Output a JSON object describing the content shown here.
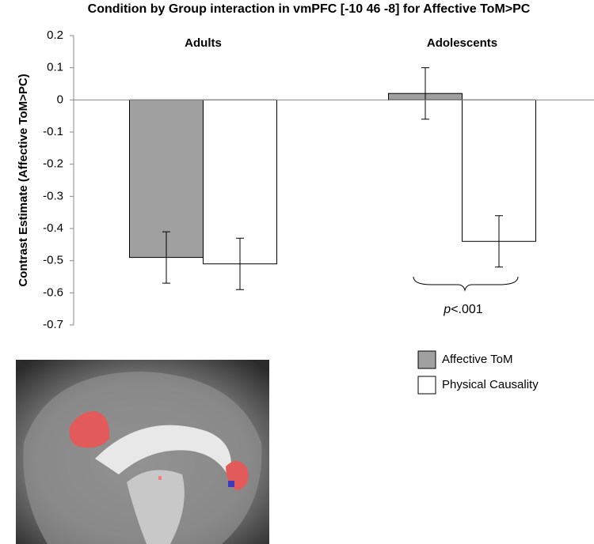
{
  "chart_data": {
    "type": "bar",
    "title": "Condition by Group interaction in vmPFC [-10 46 -8] for Affective ToM>PC",
    "y_label": "Contrast Estimate (Affective ToM>PC)",
    "categories": [
      "Adults",
      "Adolescents"
    ],
    "series": [
      {
        "name": "Affective ToM",
        "color": "#a0a0a0",
        "values": [
          -0.49,
          0.02
        ],
        "errors": [
          0.08,
          0.08
        ]
      },
      {
        "name": "Physical Causality",
        "color": "#ffffff",
        "values": [
          -0.51,
          -0.44
        ],
        "errors": [
          0.08,
          0.08
        ]
      }
    ],
    "ylim": [
      -0.7,
      0.2
    ],
    "yticks": [
      0.2,
      0.1,
      0,
      -0.1,
      -0.2,
      -0.3,
      -0.4,
      -0.5,
      -0.6,
      -0.7
    ],
    "annotation": "p<.001",
    "legend": "right"
  }
}
